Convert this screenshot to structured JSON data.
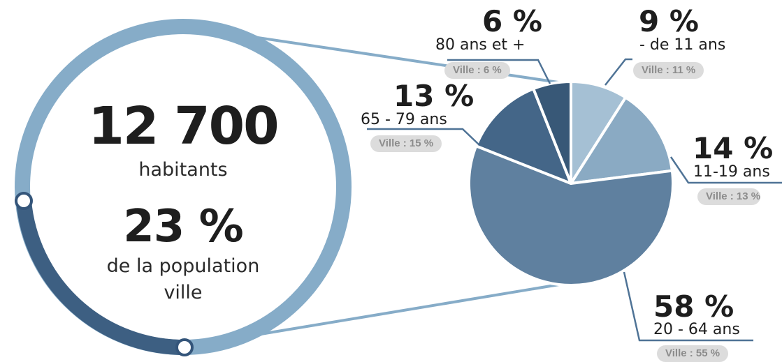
{
  "summary": {
    "count": "12 700",
    "count_label": "habitants",
    "share": "23 %",
    "share_label_1": "de la population",
    "share_label_2": "ville"
  },
  "colors": {
    "ring_light": "#86acc8",
    "ring_dark": "#3d5f82",
    "line": "#4f7396"
  },
  "chart_data": {
    "type": "pie",
    "slices": [
      {
        "pct_label": "9 %",
        "label": "- de 11 ans",
        "ville": "Ville : 11 %",
        "value": 9,
        "color": "#a5c0d4"
      },
      {
        "pct_label": "14 %",
        "label": "11-19 ans",
        "ville": "Ville : 13 %",
        "value": 14,
        "color": "#8aaac3"
      },
      {
        "pct_label": "58 %",
        "label": "20 - 64 ans",
        "ville": "Ville : 55 %",
        "value": 58,
        "color": "#5f809f"
      },
      {
        "pct_label": "13 %",
        "label": "65 - 79 ans",
        "ville": "Ville : 15 %",
        "value": 13,
        "color": "#446688"
      },
      {
        "pct_label": "6 %",
        "label": "80 ans et +",
        "ville": "Ville : 6 %",
        "value": 6,
        "color": "#385877"
      }
    ]
  }
}
